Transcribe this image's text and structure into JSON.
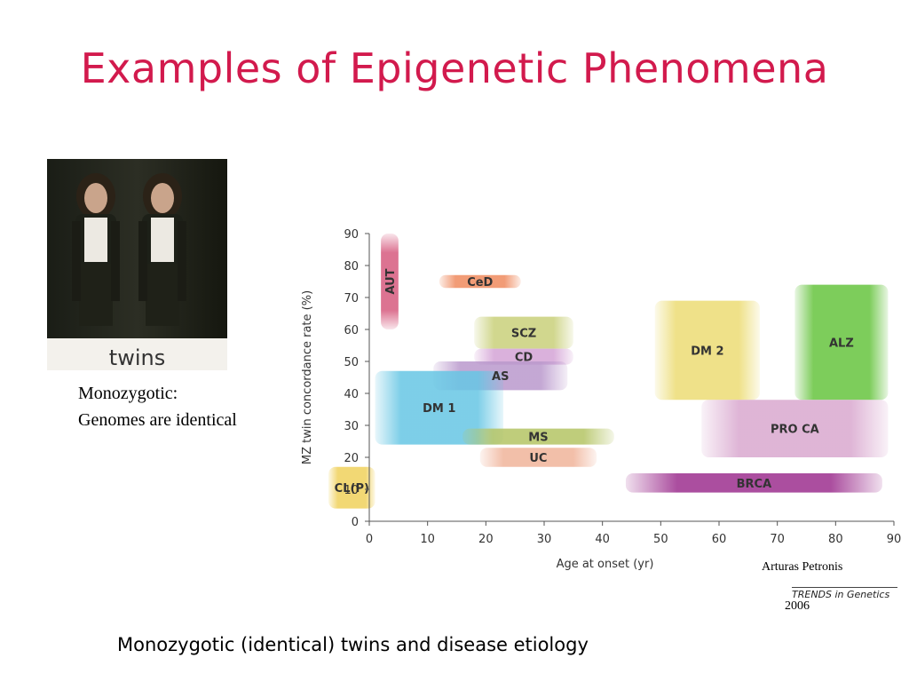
{
  "title": "Examples of Epigenetic Phenomena",
  "photo": {
    "caption": "twins"
  },
  "note": {
    "line1": "Monozygotic:",
    "line2": "Genomes are identical"
  },
  "credit": {
    "author": "Arturas Petronis",
    "journal": "TRENDS in Genetics",
    "year": "2006"
  },
  "footer": "Monozygotic (identical) twins and disease etiology",
  "chart_data": {
    "type": "range",
    "xlabel": "Age at onset (yr)",
    "ylabel": "MZ twin concordance rate (%)",
    "xlim": [
      0,
      90
    ],
    "ylim": [
      0,
      90
    ],
    "xticks": [
      0,
      10,
      20,
      30,
      40,
      50,
      60,
      70,
      80,
      90
    ],
    "yticks": [
      0,
      10,
      20,
      30,
      40,
      50,
      60,
      70,
      80,
      90
    ],
    "grid": false,
    "series": [
      {
        "name": "AUT",
        "x": [
          2,
          5
        ],
        "y": [
          60,
          90
        ],
        "color": "#d65a7e",
        "vertical": true
      },
      {
        "name": "CeD",
        "x": [
          12,
          26
        ],
        "y": [
          73,
          77
        ],
        "color": "#ef8a5e"
      },
      {
        "name": "SCZ",
        "x": [
          18,
          35
        ],
        "y": [
          54,
          64
        ],
        "color": "#c9d07a"
      },
      {
        "name": "CD",
        "x": [
          18,
          35
        ],
        "y": [
          49,
          54
        ],
        "color": "#d4a3d6"
      },
      {
        "name": "AS",
        "x": [
          11,
          34
        ],
        "y": [
          41,
          50
        ],
        "color": "#b998cc"
      },
      {
        "name": "DM 1",
        "x": [
          1,
          23
        ],
        "y": [
          24,
          47
        ],
        "color": "#66c6e4"
      },
      {
        "name": "MS",
        "x": [
          16,
          42
        ],
        "y": [
          24,
          29
        ],
        "color": "#b4c464"
      },
      {
        "name": "UC",
        "x": [
          19,
          39
        ],
        "y": [
          17,
          23
        ],
        "color": "#f0b49a"
      },
      {
        "name": "CL(P)",
        "x": [
          -7,
          1
        ],
        "y": [
          4,
          17
        ],
        "color": "#f0d15c"
      },
      {
        "name": "DM 2",
        "x": [
          49,
          67
        ],
        "y": [
          38,
          69
        ],
        "color": "#ecdc74"
      },
      {
        "name": "ALZ",
        "x": [
          73,
          89
        ],
        "y": [
          38,
          74
        ],
        "color": "#66c43e"
      },
      {
        "name": "PRO CA",
        "x": [
          57,
          89
        ],
        "y": [
          20,
          38
        ],
        "color": "#d9a8cf"
      },
      {
        "name": "BRCA",
        "x": [
          44,
          88
        ],
        "y": [
          9,
          15
        ],
        "color": "#9c2f8e"
      }
    ]
  }
}
